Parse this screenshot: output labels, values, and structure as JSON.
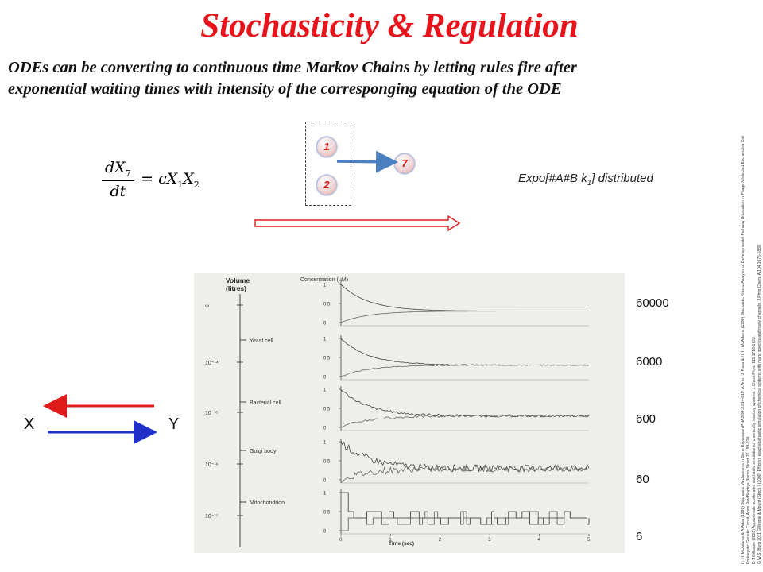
{
  "title": "Stochasticity & Regulation",
  "subtitle_line1": "ODEs can be converting to continuous time Markov Chains by letting rules fire after",
  "subtitle_line2": "exponential waiting times with intensity of the corresponging equation of the ODE",
  "equation": {
    "numerator": "dX",
    "numerator_sub": "7",
    "denominator": "dt",
    "rhs": "= cX",
    "rhs_sub1": "1",
    "rhs_mid": "X",
    "rhs_sub2": "2"
  },
  "rule": {
    "reactant_1": "1",
    "reactant_2": "2",
    "product": "7"
  },
  "expo": {
    "text": "Expo[#A#B k",
    "sub": "1",
    "tail": "] distributed"
  },
  "figure": {
    "volume_header_1": "Volume",
    "volume_header_2": "(litres)",
    "concentration_header": "Concentration (µM)",
    "time_label": "Time (sec)",
    "volume_ticks": [
      "∞",
      "10⁻¹⁴",
      "10⁻¹⁵",
      "10⁻¹⁶",
      "10⁻¹⁷"
    ],
    "compartments": [
      "Yeast cell",
      "Bacterial cell",
      "Golgi body",
      "Mitochondrion"
    ],
    "conc_ticks": [
      "1",
      "0.5",
      "0"
    ],
    "time_ticks": [
      "0",
      "1",
      "2",
      "3",
      "4",
      "5"
    ]
  },
  "molecule_counts": [
    "60000",
    "6000",
    "600",
    "60",
    "6"
  ],
  "reaction": {
    "left_species": "X",
    "right_species": "Y",
    "forward_color": "#1f2fc8",
    "backward_color": "#e01b1b"
  },
  "references": [
    "H. H. McAdams & A.Arkin (1997) Stochastic Mechanisms in Gene Expression PNAS 94.3.814-819.  A.Arkin J. Ross & H. H. McAdams (1998) Stochastic Kinetic Analysis of Developmental Pathway Bifurcation in Phage λ-Infected Escherichia Coli",
    "Prokaryotic Genetic Circuit. Annu.Rev.Biophys.Biomol.Struct.27.199-224.",
    "D.T.Gillespie (2001) Approximate accelerated stochastic simulation of chemically reacting systems.  J.Chem.Phys. 115.1716-1733.",
    "G.W.S. Burg 2011 Gillespie & Mount (Stoch.) (2000) Efficient exact stochastic simulation of chemical systems with many species and many channels. J.Phys.Chem. A 104.1876-1889."
  ],
  "colors": {
    "title": "#e8131b",
    "rule_arrow": "#4a7fc1"
  }
}
